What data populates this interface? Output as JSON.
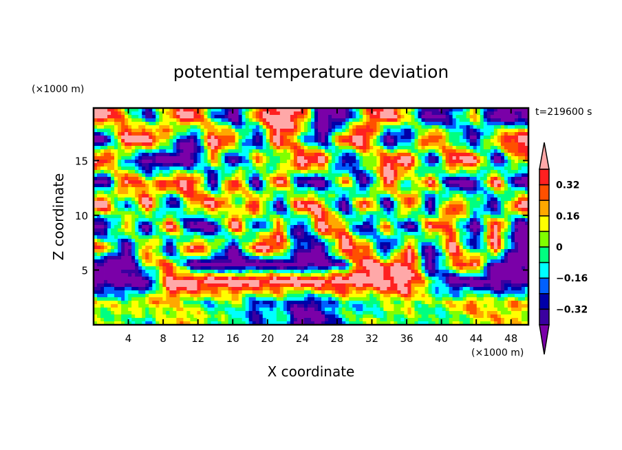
{
  "chart_data": {
    "type": "heatmap",
    "title": "potential temperature deviation",
    "xlabel": "X coordinate",
    "ylabel": "Z coordinate",
    "x_unit_label": "(×1000 m)",
    "y_unit_label": "(×1000 m)",
    "time_label": "t=219600 s",
    "xlim": [
      0,
      50
    ],
    "ylim": [
      0,
      19.8
    ],
    "x_ticks": [
      4,
      8,
      12,
      16,
      20,
      24,
      28,
      32,
      36,
      40,
      44,
      48
    ],
    "y_ticks": [
      5,
      10,
      15
    ],
    "levels": [
      -0.4,
      -0.32,
      -0.24,
      -0.16,
      -0.08,
      0,
      0.08,
      0.16,
      0.24,
      0.32,
      0.4
    ],
    "colorbar_labels": [
      "0.32",
      "0.16",
      "0",
      "-0.16",
      "-0.32"
    ],
    "colorbar_label_values": [
      0.32,
      0.16,
      0,
      -0.16,
      -0.32
    ],
    "colors": [
      "#7a00a8",
      "#3a00a0",
      "#0000a8",
      "#0060ff",
      "#00ffff",
      "#00ff80",
      "#80ff00",
      "#ffff00",
      "#ffa800",
      "#ff5000",
      "#ff2020",
      "#ffa8a8"
    ],
    "grid_x": [
      1.25,
      3.75,
      6.25,
      8.75,
      11.25,
      13.75,
      16.25,
      18.75,
      21.25,
      23.75,
      26.25,
      28.75,
      31.25,
      33.75,
      36.25,
      38.75,
      41.25,
      43.75,
      46.25,
      48.75
    ],
    "grid_z": [
      19,
      17,
      15,
      13,
      11,
      9,
      7,
      5.5,
      4,
      2,
      0.5
    ],
    "values": [
      [
        0.5,
        0.1,
        -0.3,
        0.2,
        0.5,
        -0.1,
        -0.5,
        0.3,
        0.5,
        0.4,
        -0.5,
        -0.5,
        0.2,
        0.5,
        0.1,
        -0.5,
        -0.3,
        0.2,
        -0.5,
        -0.5
      ],
      [
        -0.5,
        0.5,
        0.5,
        0.1,
        -0.5,
        0.5,
        0.3,
        -0.5,
        0.5,
        0.0,
        -0.5,
        0.4,
        0.5,
        -0.5,
        -0.3,
        0.5,
        0.0,
        -0.5,
        0.3,
        0.5
      ],
      [
        0.5,
        -0.2,
        -0.5,
        -0.5,
        -0.5,
        0.2,
        -0.5,
        0.3,
        -0.2,
        0.5,
        0.5,
        -0.5,
        0.0,
        0.4,
        0.5,
        -0.5,
        0.5,
        0.5,
        -0.5,
        0.2
      ],
      [
        -0.5,
        0.5,
        0.1,
        0.4,
        0.5,
        -0.5,
        0.5,
        -0.5,
        0.5,
        -0.4,
        -0.5,
        0.3,
        -0.5,
        0.5,
        -0.2,
        0.4,
        -0.5,
        -0.5,
        0.5,
        -0.5
      ],
      [
        0.5,
        -0.3,
        0.5,
        -0.5,
        0.2,
        0.5,
        -0.1,
        0.5,
        -0.5,
        0.5,
        0.3,
        -0.5,
        0.5,
        -0.5,
        0.5,
        -0.5,
        0.4,
        0.1,
        -0.5,
        0.5
      ],
      [
        -0.5,
        0.3,
        -0.5,
        0.5,
        -0.5,
        -0.5,
        0.5,
        -0.4,
        0.3,
        -0.5,
        0.5,
        0.2,
        -0.5,
        0.3,
        -0.5,
        0.4,
        0.2,
        -0.5,
        0.5,
        -0.5
      ],
      [
        0.3,
        -0.5,
        0.4,
        -0.5,
        0.5,
        0.2,
        -0.5,
        0.5,
        0.4,
        -0.3,
        -0.5,
        0.5,
        0.3,
        -0.5,
        0.4,
        -0.5,
        0.5,
        -0.3,
        0.4,
        -0.5
      ],
      [
        -0.5,
        -0.5,
        0.1,
        0.3,
        -0.5,
        -0.5,
        -0.5,
        -0.5,
        -0.5,
        -0.5,
        -0.5,
        -0.3,
        0.5,
        0.3,
        0.5,
        -0.5,
        0.2,
        0.5,
        -0.5,
        -0.5
      ],
      [
        -0.5,
        -0.5,
        -0.5,
        0.5,
        0.5,
        0.5,
        0.5,
        0.5,
        0.5,
        0.5,
        0.5,
        0.5,
        0.5,
        0.5,
        0.5,
        0.0,
        -0.5,
        -0.5,
        -0.5,
        -0.5
      ],
      [
        0.1,
        0.05,
        0.2,
        0.15,
        0.0,
        -0.1,
        0.05,
        -0.3,
        -0.1,
        -0.4,
        -0.3,
        0.0,
        -0.2,
        0.05,
        0.1,
        0.0,
        0.1,
        0.3,
        0.05,
        0.2
      ],
      [
        0.0,
        0.05,
        -0.1,
        0.1,
        0.2,
        0.0,
        -0.05,
        -0.3,
        0.0,
        -0.5,
        -0.4,
        -0.1,
        0.05,
        0.0,
        0.05,
        -0.1,
        0.0,
        0.1,
        0.2,
        0.1
      ]
    ],
    "grid": false,
    "legend": "right (colorbar)"
  }
}
